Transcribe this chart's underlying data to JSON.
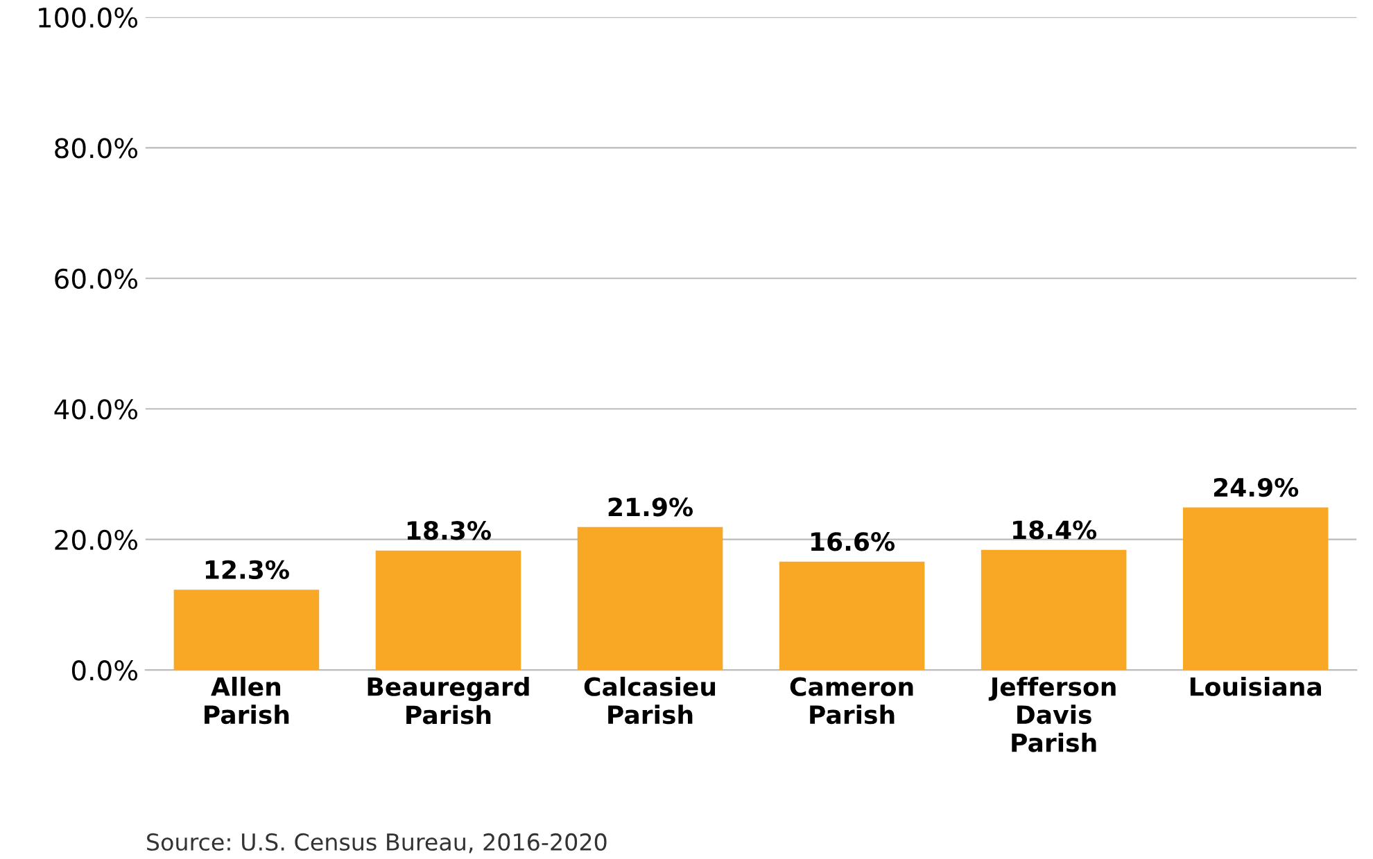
{
  "chart_data": {
    "type": "bar",
    "categories": [
      "Allen\nParish",
      "Beauregard\nParish",
      "Calcasieu\nParish",
      "Cameron\nParish",
      "Jefferson\nDavis\nParish",
      "Louisiana"
    ],
    "values": [
      12.3,
      18.3,
      21.9,
      16.6,
      18.4,
      24.9
    ],
    "value_labels": [
      "12.3%",
      "18.3%",
      "21.9%",
      "16.6%",
      "18.4%",
      "24.9%"
    ],
    "color": "#f9a825",
    "ylim": [
      0,
      100
    ],
    "yticks": [
      {
        "value": 0,
        "label": "0.0%"
      },
      {
        "value": 20,
        "label": "20.0%"
      },
      {
        "value": 40,
        "label": "40.0%"
      },
      {
        "value": 60,
        "label": "60.0%"
      },
      {
        "value": 80,
        "label": "80.0%"
      },
      {
        "value": 100,
        "label": "100.0%"
      }
    ],
    "grid": "y",
    "annotations": [
      "Source: U.S. Census Bureau, 2016-2020"
    ]
  }
}
